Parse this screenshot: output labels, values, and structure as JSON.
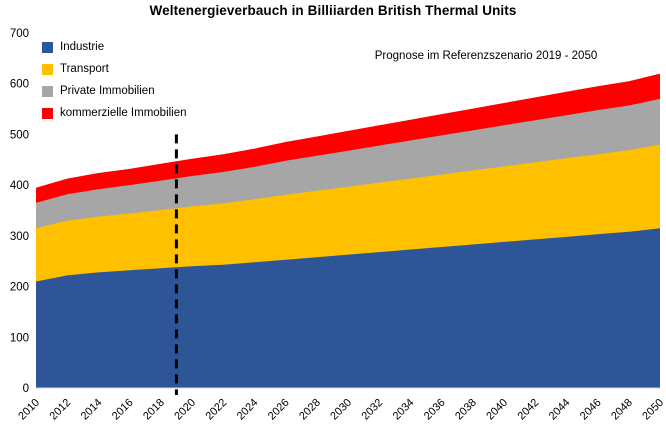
{
  "title": "Weltenergieverbauch in Billiiarden British Thermal Units",
  "annotation": "Prognose im Referenzszenario 2019 - 2050",
  "legend": {
    "items": [
      {
        "label": "Industrie",
        "color": "#2E5597"
      },
      {
        "label": "Transport",
        "color": "#FFC000"
      },
      {
        "label": "Private Immobilien",
        "color": "#A6A6A6"
      },
      {
        "label": "kommerzielle Immobilien",
        "color": "#FF0000"
      }
    ]
  },
  "chart_data": {
    "type": "area",
    "stacked": true,
    "title": "Weltenergieverbauch in Billiiarden British Thermal Units",
    "annotation": "Prognose im Referenzszenario 2019 - 2050",
    "x": [
      2010,
      2012,
      2014,
      2016,
      2018,
      2020,
      2022,
      2024,
      2026,
      2028,
      2030,
      2032,
      2034,
      2036,
      2038,
      2040,
      2042,
      2044,
      2046,
      2048,
      2050
    ],
    "series": [
      {
        "name": "Industrie",
        "color": "#2E5597",
        "values": [
          210,
          222,
          228,
          232,
          236,
          240,
          243,
          248,
          253,
          258,
          263,
          268,
          273,
          278,
          283,
          288,
          293,
          298,
          303,
          308,
          315
        ]
      },
      {
        "name": "Transport",
        "color": "#FFC000",
        "values": [
          105,
          108,
          110,
          112,
          115,
          118,
          121,
          124,
          128,
          131,
          134,
          137,
          140,
          143,
          146,
          149,
          152,
          155,
          158,
          161,
          165
        ]
      },
      {
        "name": "Private Immobilien",
        "color": "#A6A6A6",
        "values": [
          50,
          52,
          54,
          56,
          58,
          60,
          62,
          64,
          67,
          69,
          71,
          73,
          75,
          77,
          79,
          81,
          83,
          85,
          87,
          88,
          90
        ]
      },
      {
        "name": "kommerzielle Immobilien",
        "color": "#FF0000",
        "values": [
          30,
          31,
          32,
          32,
          33,
          34,
          35,
          36,
          37,
          38,
          39,
          40,
          41,
          42,
          43,
          44,
          45,
          46,
          47,
          48,
          50
        ]
      }
    ],
    "xlabel": "",
    "ylabel": "",
    "xlim": [
      2010,
      2050
    ],
    "ylim": [
      0,
      700
    ],
    "yticks": [
      0,
      100,
      200,
      300,
      400,
      500,
      600,
      700
    ],
    "xtick_labels": [
      "2010",
      "2012",
      "2014",
      "2016",
      "2018",
      "2020",
      "2022",
      "2024",
      "2026",
      "2028",
      "2030",
      "2032",
      "2034",
      "2036",
      "2038",
      "2040",
      "2042",
      "2044",
      "2046",
      "2048",
      "2050"
    ],
    "forecast_divider": {
      "x": 2019,
      "y_top": 500,
      "style": "dashed-black"
    },
    "grid": false,
    "legend_position": "top-left"
  }
}
